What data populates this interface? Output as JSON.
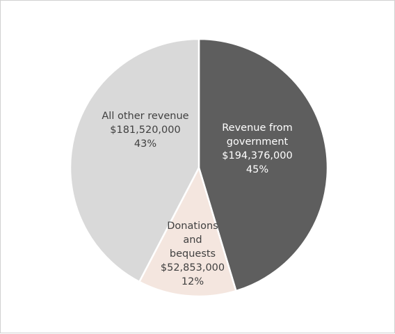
{
  "chart_data": {
    "type": "pie",
    "title": "",
    "slices": [
      {
        "label_lines": [
          "Revenue from",
          "government"
        ],
        "value": 194376000,
        "value_label": "$194,376,000",
        "percent_label": "45%",
        "color": "#5e5e5e",
        "text_color": "#ffffff"
      },
      {
        "label_lines": [
          "Donations",
          "and",
          "bequests"
        ],
        "value": 52853000,
        "value_label": "$52,853,000",
        "percent_label": "12%",
        "color": "#f4e6df",
        "text_color": "#404040"
      },
      {
        "label_lines": [
          "All other revenue"
        ],
        "value": 181520000,
        "value_label": "$181,520,000",
        "percent_label": "43%",
        "color": "#d9d9d9",
        "text_color": "#404040"
      }
    ],
    "start_angle": "12 o'clock",
    "direction": "clockwise",
    "slice_border_color": "#ffffff",
    "legend": "none"
  }
}
